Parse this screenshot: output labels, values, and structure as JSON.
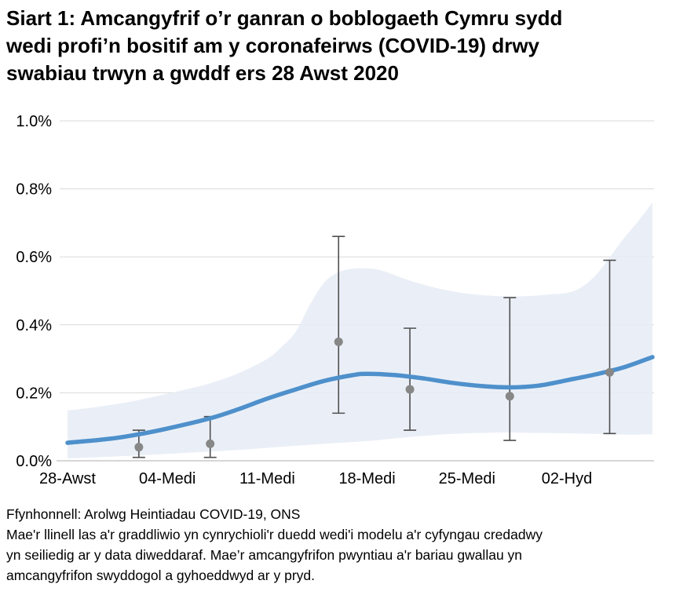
{
  "title": {
    "lines": [
      "Siart 1: Amcangyfrif o’r ganran o boblogaeth Cymru sydd",
      "wedi profi’n bositif am y coronafeirws (COVID-19) drwy",
      "swabiau trwyn a gwddf ers 28 Awst 2020"
    ]
  },
  "footer": {
    "source": "Ffynhonnell: Arolwg Heintiadau COVID-19, ONS",
    "note_lines": [
      "Mae'r llinell las a'r graddliwio yn cynrychioli'r duedd wedi'i modelu a'r cyfyngau credadwy",
      "yn seiliedig ar y data diweddaraf. Mae’r amcangyfrifon pwyntiau a'r bariau gwallau yn",
      "amcangyfrifon swyddogol a gyhoeddwyd ar y pryd."
    ]
  },
  "chart_data": {
    "type": "line",
    "title": "Siart 1: Amcangyfrif o’r ganran o boblogaeth Cymru sydd wedi profi’n bositif am y coronafeirws (COVID-19) drwy swabiau trwyn a gwddf ers 28 Awst 2020",
    "xlabel": "",
    "ylabel": "",
    "ylim": [
      0.0,
      1.0
    ],
    "grid": "horizontal",
    "legend": "none",
    "colors": {
      "trend_line": "#4e90cb",
      "credible_band": "#e7edf6",
      "point": "#878787",
      "error_bar": "#4f4f4f",
      "gridline": "#d9d9d9",
      "axis_line": "#c9c9c9",
      "text": "#000000"
    },
    "y_axis": {
      "tick_values": [
        0.0,
        0.2,
        0.4,
        0.6,
        0.8,
        1.0
      ],
      "tick_labels": [
        "0.0%",
        "0.2%",
        "0.4%",
        "0.6%",
        "0.8%",
        "1.0%"
      ]
    },
    "x_axis": {
      "tick_days": [
        0,
        7,
        14,
        21,
        28,
        35
      ],
      "tick_labels": [
        "28-Awst",
        "04-Medi",
        "11-Medi",
        "18-Medi",
        "25-Medi",
        "02-Hyd"
      ],
      "domain_days": [
        0,
        41
      ],
      "start_date": "28 Awst 2020"
    },
    "modelled_trend_pct": [
      [
        0,
        0.053
      ],
      [
        3,
        0.065
      ],
      [
        5,
        0.078
      ],
      [
        7,
        0.095
      ],
      [
        10,
        0.125
      ],
      [
        12,
        0.152
      ],
      [
        14,
        0.183
      ],
      [
        16,
        0.21
      ],
      [
        18,
        0.235
      ],
      [
        20,
        0.252
      ],
      [
        21,
        0.256
      ],
      [
        23,
        0.252
      ],
      [
        25,
        0.242
      ],
      [
        27,
        0.229
      ],
      [
        29,
        0.22
      ],
      [
        31,
        0.216
      ],
      [
        33,
        0.221
      ],
      [
        35,
        0.237
      ],
      [
        37,
        0.254
      ],
      [
        39,
        0.275
      ],
      [
        41,
        0.305
      ]
    ],
    "credible_band_pct": {
      "upper": [
        [
          0,
          0.148
        ],
        [
          2,
          0.158
        ],
        [
          4,
          0.171
        ],
        [
          6,
          0.188
        ],
        [
          8,
          0.207
        ],
        [
          10,
          0.228
        ],
        [
          12,
          0.258
        ],
        [
          14,
          0.3
        ],
        [
          15,
          0.335
        ],
        [
          16,
          0.38
        ],
        [
          17,
          0.46
        ],
        [
          18,
          0.525
        ],
        [
          19,
          0.555
        ],
        [
          20,
          0.565
        ],
        [
          21,
          0.566
        ],
        [
          22,
          0.56
        ],
        [
          24,
          0.53
        ],
        [
          26,
          0.507
        ],
        [
          28,
          0.492
        ],
        [
          30,
          0.485
        ],
        [
          32,
          0.484
        ],
        [
          34,
          0.49
        ],
        [
          35,
          0.494
        ],
        [
          36,
          0.51
        ],
        [
          37,
          0.545
        ],
        [
          38,
          0.598
        ],
        [
          39,
          0.655
        ],
        [
          40,
          0.705
        ],
        [
          41,
          0.76
        ]
      ],
      "lower": [
        [
          0,
          0.007
        ],
        [
          3,
          0.012
        ],
        [
          6,
          0.018
        ],
        [
          9,
          0.025
        ],
        [
          12,
          0.032
        ],
        [
          15,
          0.041
        ],
        [
          18,
          0.05
        ],
        [
          21,
          0.058
        ],
        [
          24,
          0.07
        ],
        [
          27,
          0.079
        ],
        [
          30,
          0.083
        ],
        [
          33,
          0.082
        ],
        [
          36,
          0.08
        ],
        [
          39,
          0.077
        ],
        [
          41,
          0.078
        ]
      ]
    },
    "official_estimates": [
      {
        "date": "02-Medi",
        "day": 5,
        "estimate": 0.04,
        "lower": 0.01,
        "upper": 0.09
      },
      {
        "date": "07-Medi",
        "day": 10,
        "estimate": 0.05,
        "lower": 0.01,
        "upper": 0.13
      },
      {
        "date": "16-Medi",
        "day": 19,
        "estimate": 0.35,
        "lower": 0.14,
        "upper": 0.66
      },
      {
        "date": "21-Medi",
        "day": 24,
        "estimate": 0.21,
        "lower": 0.09,
        "upper": 0.39
      },
      {
        "date": "28-Medi",
        "day": 31,
        "estimate": 0.19,
        "lower": 0.06,
        "upper": 0.48
      },
      {
        "date": "05-Hyd",
        "day": 38,
        "estimate": 0.26,
        "lower": 0.08,
        "upper": 0.59
      }
    ]
  }
}
